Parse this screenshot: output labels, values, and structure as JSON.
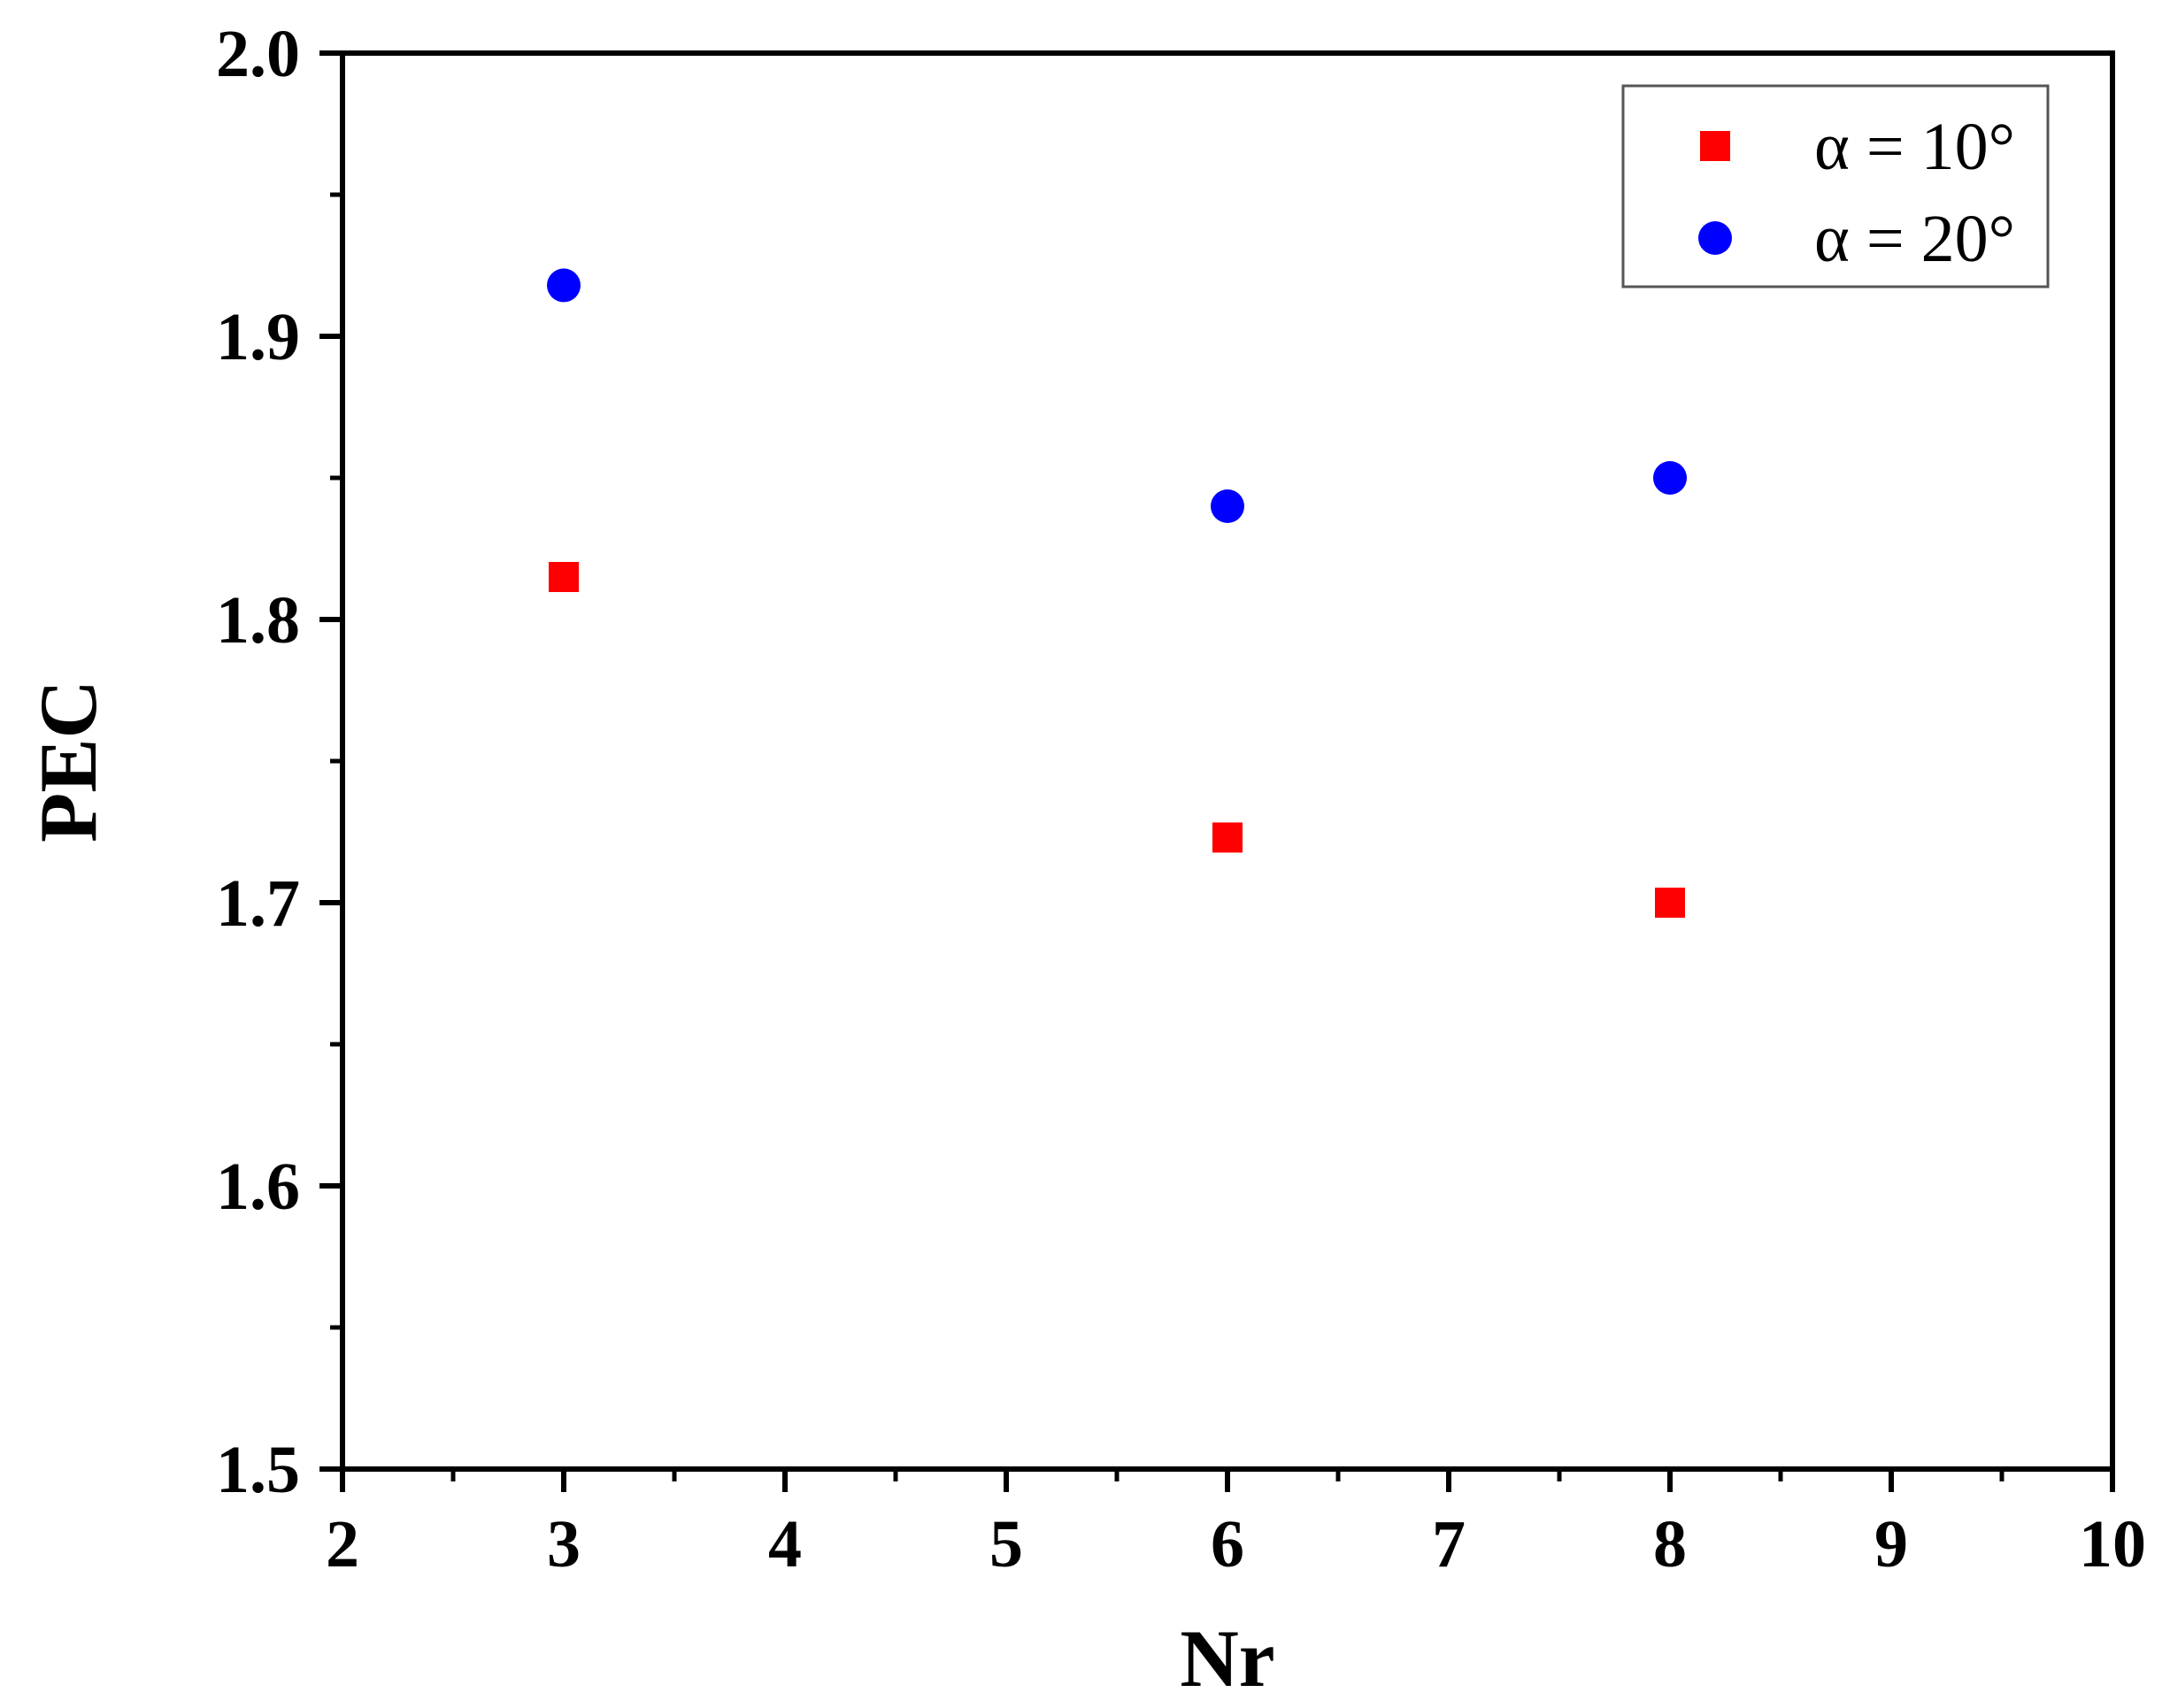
{
  "chart_data": {
    "type": "scatter",
    "title": "",
    "xlabel": "Nr",
    "ylabel": "PEC",
    "xlim": [
      2,
      10
    ],
    "ylim": [
      1.5,
      2.0
    ],
    "x_ticks": [
      2,
      3,
      4,
      5,
      6,
      7,
      8,
      9,
      10
    ],
    "x_tick_labels": [
      "2",
      "3",
      "4",
      "5",
      "6",
      "7",
      "8",
      "9",
      "10"
    ],
    "y_ticks": [
      1.5,
      1.6,
      1.7,
      1.8,
      1.9,
      2.0
    ],
    "y_tick_labels": [
      "1.5",
      "1.6",
      "1.7",
      "1.8",
      "1.9",
      "2.0"
    ],
    "grid": false,
    "legend_position": "top-right",
    "series": [
      {
        "name": "α = 10°",
        "marker": "square",
        "color": "#ff0000",
        "x": [
          3,
          6,
          8
        ],
        "y": [
          1.815,
          1.723,
          1.7
        ]
      },
      {
        "name": "α = 20°",
        "marker": "circle",
        "color": "#0000ff",
        "x": [
          3,
          6,
          8
        ],
        "y": [
          1.918,
          1.84,
          1.85
        ]
      }
    ]
  }
}
